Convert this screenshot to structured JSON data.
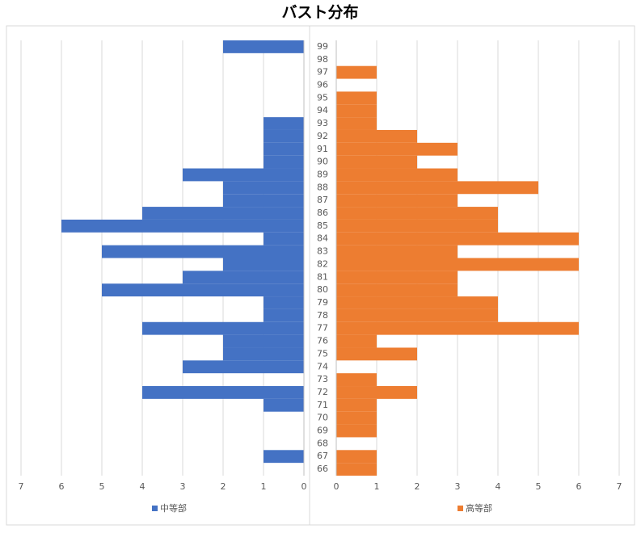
{
  "chart_data": {
    "type": "bar",
    "orientation": "horizontal",
    "title": "バスト分布",
    "categories": [
      "66",
      "67",
      "68",
      "69",
      "70",
      "71",
      "72",
      "73",
      "74",
      "75",
      "76",
      "77",
      "78",
      "79",
      "80",
      "81",
      "82",
      "83",
      "84",
      "85",
      "86",
      "87",
      "88",
      "89",
      "90",
      "91",
      "92",
      "93",
      "94",
      "95",
      "96",
      "97",
      "98",
      "99"
    ],
    "series": [
      {
        "name": "中等部",
        "color": "#4472c4",
        "values": [
          0,
          1,
          0,
          0,
          0,
          1,
          4,
          0,
          3,
          2,
          2,
          4,
          1,
          1,
          5,
          3,
          2,
          5,
          1,
          6,
          4,
          2,
          2,
          3,
          1,
          1,
          1,
          1,
          0,
          0,
          0,
          0,
          0,
          2
        ]
      },
      {
        "name": "高等部",
        "color": "#ed7d31",
        "values": [
          1,
          1,
          0,
          1,
          1,
          1,
          2,
          1,
          0,
          2,
          1,
          6,
          4,
          4,
          3,
          3,
          6,
          3,
          6,
          4,
          4,
          3,
          5,
          3,
          2,
          3,
          2,
          1,
          1,
          1,
          0,
          1,
          0,
          0
        ]
      }
    ],
    "xlim": [
      0,
      7
    ],
    "xticks": [
      0,
      1,
      2,
      3,
      4,
      5,
      6,
      7
    ],
    "grid": true
  }
}
